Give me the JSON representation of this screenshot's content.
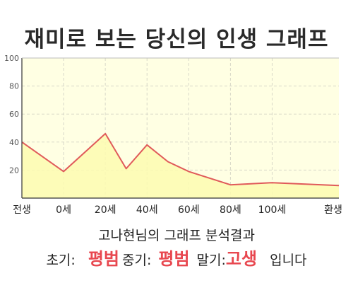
{
  "chart_data": {
    "type": "area",
    "title": "재미로 보는 당신의 인생 그래프",
    "x": [
      "전생",
      "0세",
      "20세",
      "40세",
      "60세",
      "80세",
      "100세",
      "환생"
    ],
    "series": [
      {
        "points": [
          [
            "전생",
            40
          ],
          [
            "0세",
            19
          ],
          [
            "20세",
            46
          ],
          [
            "30세",
            21
          ],
          [
            "40세",
            38
          ],
          [
            "50세",
            26
          ],
          [
            "60세",
            19
          ],
          [
            "80세",
            9.5
          ],
          [
            "100세",
            11
          ],
          [
            "환생",
            9
          ]
        ]
      }
    ],
    "ylim": [
      0,
      100
    ],
    "yticks": [
      20,
      40,
      60,
      80,
      100
    ],
    "grid": true,
    "colors": {
      "plot_background": "#ffffe3",
      "line": "#e05a5a",
      "fill": "#fdfbb0",
      "grid": "#d8d8c8"
    }
  },
  "summary": "고나현님의 그래프 분석결과",
  "verdict": {
    "early_label": "초기:",
    "early_value": "평범",
    "middle_label": "중기:",
    "middle_value": "평범",
    "late_label": "말기:",
    "late_value": "고생",
    "suffix": "입니다"
  }
}
